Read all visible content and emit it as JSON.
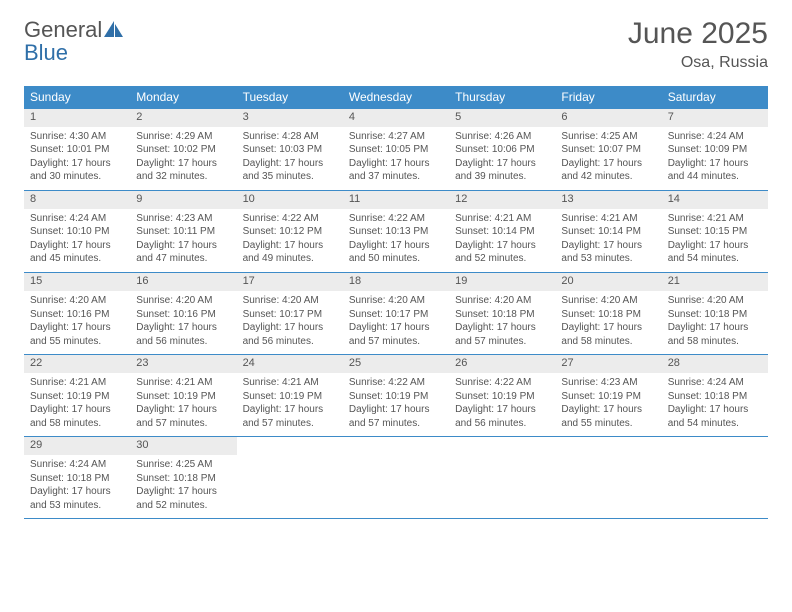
{
  "brand": {
    "word1": "General",
    "word2": "Blue"
  },
  "title": "June 2025",
  "location": "Osa, Russia",
  "colors": {
    "header_bg": "#3d8bc8",
    "header_text": "#ffffff",
    "daynum_bg": "#ececec",
    "body_text": "#555555",
    "rule": "#3d8bc8",
    "logo_blue": "#2f6fa8"
  },
  "weekdays": [
    "Sunday",
    "Monday",
    "Tuesday",
    "Wednesday",
    "Thursday",
    "Friday",
    "Saturday"
  ],
  "days": [
    {
      "n": 1,
      "sunrise": "4:30 AM",
      "sunset": "10:01 PM",
      "daylight": "17 hours and 30 minutes."
    },
    {
      "n": 2,
      "sunrise": "4:29 AM",
      "sunset": "10:02 PM",
      "daylight": "17 hours and 32 minutes."
    },
    {
      "n": 3,
      "sunrise": "4:28 AM",
      "sunset": "10:03 PM",
      "daylight": "17 hours and 35 minutes."
    },
    {
      "n": 4,
      "sunrise": "4:27 AM",
      "sunset": "10:05 PM",
      "daylight": "17 hours and 37 minutes."
    },
    {
      "n": 5,
      "sunrise": "4:26 AM",
      "sunset": "10:06 PM",
      "daylight": "17 hours and 39 minutes."
    },
    {
      "n": 6,
      "sunrise": "4:25 AM",
      "sunset": "10:07 PM",
      "daylight": "17 hours and 42 minutes."
    },
    {
      "n": 7,
      "sunrise": "4:24 AM",
      "sunset": "10:09 PM",
      "daylight": "17 hours and 44 minutes."
    },
    {
      "n": 8,
      "sunrise": "4:24 AM",
      "sunset": "10:10 PM",
      "daylight": "17 hours and 45 minutes."
    },
    {
      "n": 9,
      "sunrise": "4:23 AM",
      "sunset": "10:11 PM",
      "daylight": "17 hours and 47 minutes."
    },
    {
      "n": 10,
      "sunrise": "4:22 AM",
      "sunset": "10:12 PM",
      "daylight": "17 hours and 49 minutes."
    },
    {
      "n": 11,
      "sunrise": "4:22 AM",
      "sunset": "10:13 PM",
      "daylight": "17 hours and 50 minutes."
    },
    {
      "n": 12,
      "sunrise": "4:21 AM",
      "sunset": "10:14 PM",
      "daylight": "17 hours and 52 minutes."
    },
    {
      "n": 13,
      "sunrise": "4:21 AM",
      "sunset": "10:14 PM",
      "daylight": "17 hours and 53 minutes."
    },
    {
      "n": 14,
      "sunrise": "4:21 AM",
      "sunset": "10:15 PM",
      "daylight": "17 hours and 54 minutes."
    },
    {
      "n": 15,
      "sunrise": "4:20 AM",
      "sunset": "10:16 PM",
      "daylight": "17 hours and 55 minutes."
    },
    {
      "n": 16,
      "sunrise": "4:20 AM",
      "sunset": "10:16 PM",
      "daylight": "17 hours and 56 minutes."
    },
    {
      "n": 17,
      "sunrise": "4:20 AM",
      "sunset": "10:17 PM",
      "daylight": "17 hours and 56 minutes."
    },
    {
      "n": 18,
      "sunrise": "4:20 AM",
      "sunset": "10:17 PM",
      "daylight": "17 hours and 57 minutes."
    },
    {
      "n": 19,
      "sunrise": "4:20 AM",
      "sunset": "10:18 PM",
      "daylight": "17 hours and 57 minutes."
    },
    {
      "n": 20,
      "sunrise": "4:20 AM",
      "sunset": "10:18 PM",
      "daylight": "17 hours and 58 minutes."
    },
    {
      "n": 21,
      "sunrise": "4:20 AM",
      "sunset": "10:18 PM",
      "daylight": "17 hours and 58 minutes."
    },
    {
      "n": 22,
      "sunrise": "4:21 AM",
      "sunset": "10:19 PM",
      "daylight": "17 hours and 58 minutes."
    },
    {
      "n": 23,
      "sunrise": "4:21 AM",
      "sunset": "10:19 PM",
      "daylight": "17 hours and 57 minutes."
    },
    {
      "n": 24,
      "sunrise": "4:21 AM",
      "sunset": "10:19 PM",
      "daylight": "17 hours and 57 minutes."
    },
    {
      "n": 25,
      "sunrise": "4:22 AM",
      "sunset": "10:19 PM",
      "daylight": "17 hours and 57 minutes."
    },
    {
      "n": 26,
      "sunrise": "4:22 AM",
      "sunset": "10:19 PM",
      "daylight": "17 hours and 56 minutes."
    },
    {
      "n": 27,
      "sunrise": "4:23 AM",
      "sunset": "10:19 PM",
      "daylight": "17 hours and 55 minutes."
    },
    {
      "n": 28,
      "sunrise": "4:24 AM",
      "sunset": "10:18 PM",
      "daylight": "17 hours and 54 minutes."
    },
    {
      "n": 29,
      "sunrise": "4:24 AM",
      "sunset": "10:18 PM",
      "daylight": "17 hours and 53 minutes."
    },
    {
      "n": 30,
      "sunrise": "4:25 AM",
      "sunset": "10:18 PM",
      "daylight": "17 hours and 52 minutes."
    }
  ],
  "labels": {
    "sunrise": "Sunrise:",
    "sunset": "Sunset:",
    "daylight": "Daylight:"
  },
  "layout": {
    "first_weekday_index": 0,
    "total_days": 30,
    "cols": 7
  }
}
